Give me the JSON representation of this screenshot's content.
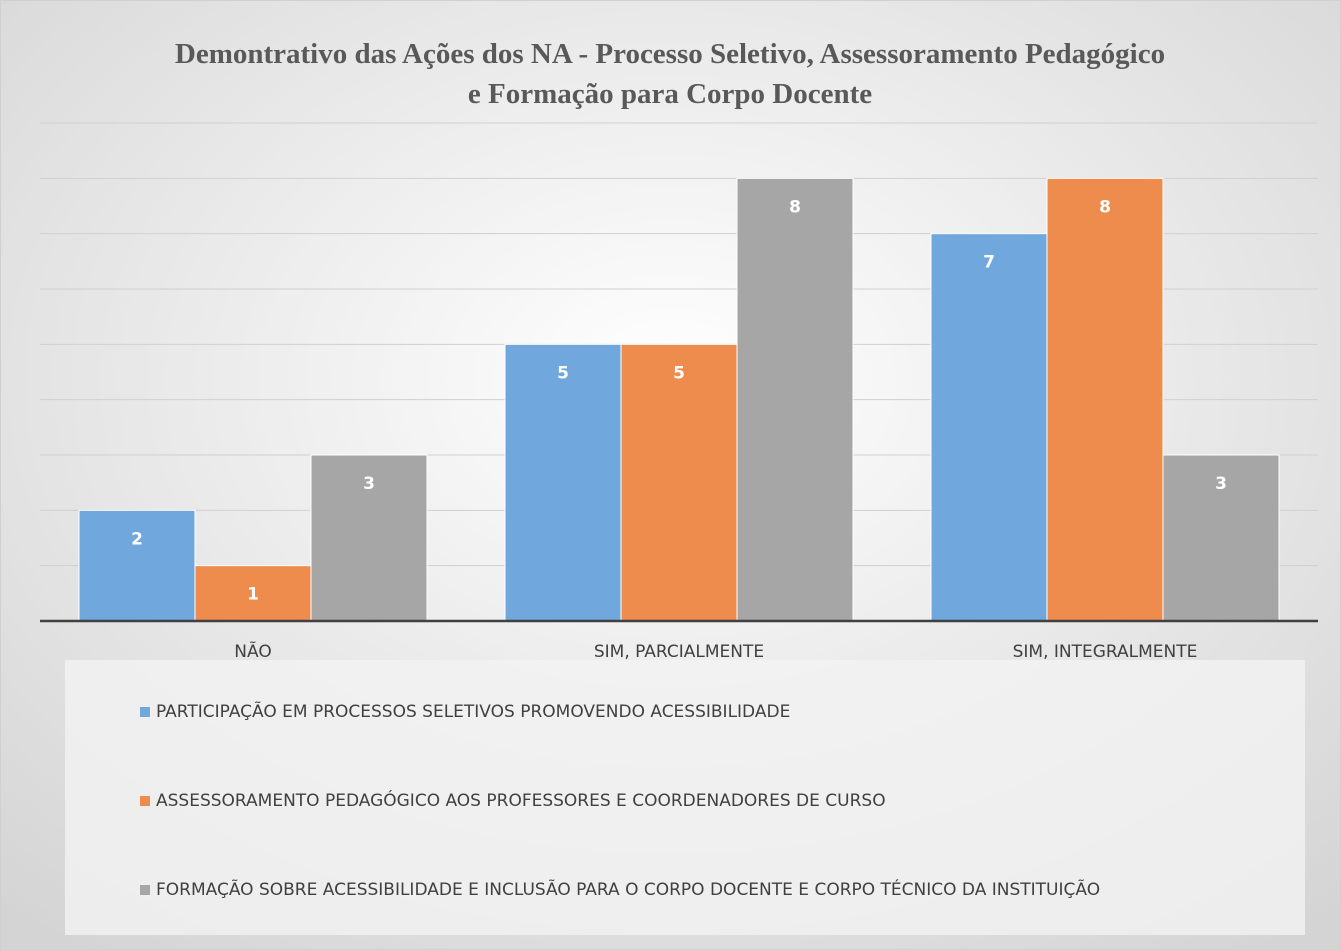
{
  "chart_data": {
    "type": "bar",
    "title": "Demontrativo das Ações dos NA - Processo Seletivo, Assessoramento Pedagógico e Formação para Corpo Docente",
    "categories": [
      "NÃO",
      "SIM, PARCIALMENTE",
      "SIM, INTEGRALMENTE"
    ],
    "series": [
      {
        "name": "PARTICIPAÇÃO EM PROCESSOS SELETIVOS PROMOVENDO ACESSIBILIDADE",
        "color": "#70a7dc",
        "values": [
          2,
          5,
          7
        ]
      },
      {
        "name": "ASSESSORAMENTO PEDAGÓGICO AOS PROFESSORES E COORDENADORES DE CURSO",
        "color": "#ee8c4e",
        "values": [
          1,
          5,
          8
        ]
      },
      {
        "name": "FORMAÇÃO SOBRE ACESSIBILIDADE E INCLUSÃO PARA O CORPO DOCENTE E CORPO TÉCNICO DA INSTITUIÇÃO",
        "color": "#a6a6a6",
        "values": [
          3,
          8,
          3
        ]
      }
    ],
    "ylim": [
      0,
      9
    ],
    "yticks": [
      0,
      1,
      2,
      3,
      4,
      5,
      6,
      7,
      8,
      9
    ],
    "grid": true,
    "legend": "bottom"
  }
}
